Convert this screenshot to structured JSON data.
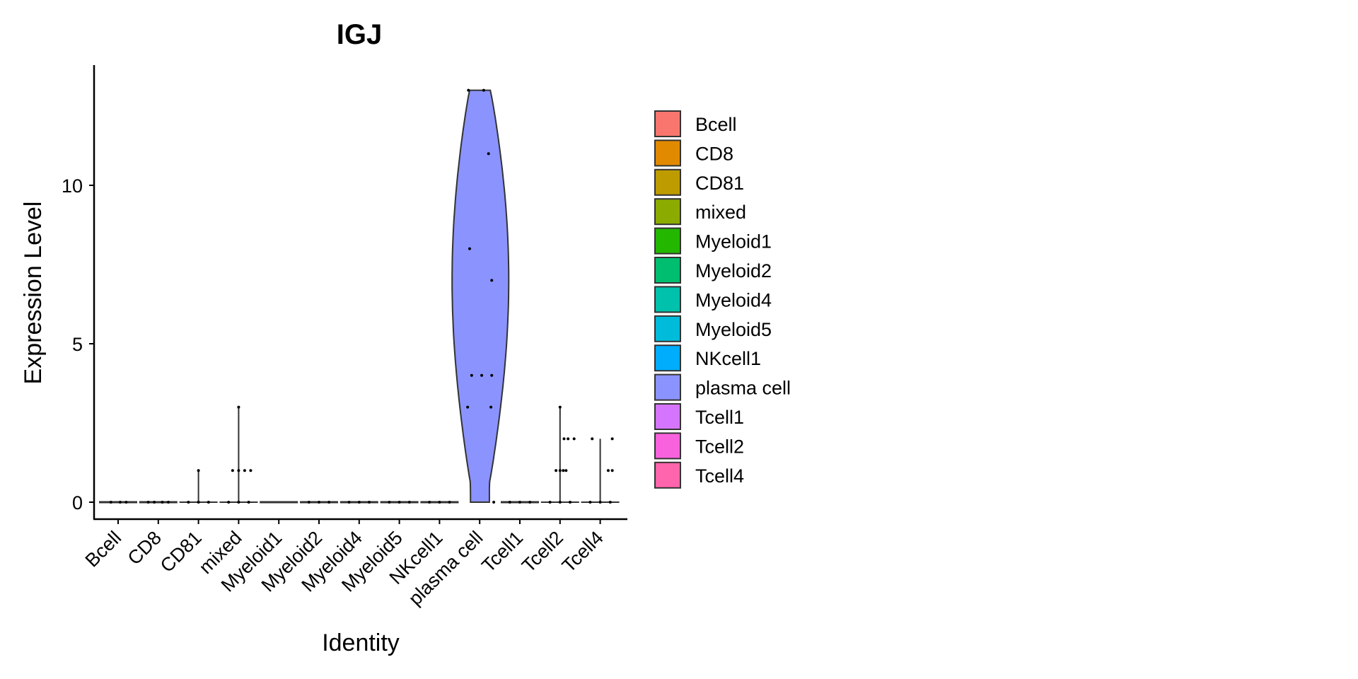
{
  "chart_data": {
    "type": "violin",
    "title": "IGJ",
    "xlabel": "Identity",
    "ylabel": "Expression Level",
    "ylim": [
      -0.6,
      13.6
    ],
    "yticks": [
      0,
      5,
      10
    ],
    "grid": false,
    "legend": {
      "placement": "right",
      "title": ""
    },
    "categories": [
      "Bcell",
      "CD8",
      "CD81",
      "mixed",
      "Myeloid1",
      "Myeloid2",
      "Myeloid4",
      "Myeloid5",
      "NKcell1",
      "plasma cell",
      "Tcell1",
      "Tcell2",
      "Tcell4"
    ],
    "colors": [
      "#F8766D",
      "#E18A00",
      "#BE9C00",
      "#8CAB00",
      "#24B700",
      "#00BE70",
      "#00C1AB",
      "#00BBDA",
      "#00ACFC",
      "#8B93FF",
      "#D575FE",
      "#F962DD",
      "#FF65AC"
    ],
    "series": [
      {
        "name": "Bcell",
        "max": 0,
        "points": [
          [
            -0.18,
            0
          ],
          [
            0.05,
            0
          ],
          [
            0.2,
            0
          ]
        ]
      },
      {
        "name": "CD8",
        "max": 0,
        "points": [
          [
            -0.25,
            0
          ],
          [
            -0.1,
            0
          ],
          [
            0.1,
            0
          ],
          [
            0.25,
            0
          ]
        ]
      },
      {
        "name": "CD81",
        "max": 1,
        "points": [
          [
            -0.25,
            0
          ],
          [
            0,
            0
          ],
          [
            0.25,
            0
          ],
          [
            0,
            1
          ]
        ]
      },
      {
        "name": "mixed",
        "max": 3,
        "points": [
          [
            -0.25,
            0
          ],
          [
            0,
            0
          ],
          [
            0.25,
            0
          ],
          [
            -0.15,
            1
          ],
          [
            0,
            1
          ],
          [
            0.15,
            1
          ],
          [
            0.3,
            1
          ],
          [
            0,
            3
          ]
        ]
      },
      {
        "name": "Myeloid1",
        "max": 0,
        "points": []
      },
      {
        "name": "Myeloid2",
        "max": 0,
        "points": [
          [
            -0.25,
            0
          ],
          [
            0,
            0
          ],
          [
            0.25,
            0
          ]
        ]
      },
      {
        "name": "Myeloid4",
        "max": 0,
        "points": [
          [
            -0.25,
            0
          ],
          [
            0,
            0
          ],
          [
            0.25,
            0
          ]
        ]
      },
      {
        "name": "Myeloid5",
        "max": 0,
        "points": [
          [
            -0.25,
            0
          ],
          [
            0,
            0
          ],
          [
            0.25,
            0
          ]
        ]
      },
      {
        "name": "NKcell1",
        "max": 0,
        "points": [
          [
            -0.25,
            0
          ],
          [
            0,
            0
          ],
          [
            0.25,
            0
          ]
        ]
      },
      {
        "name": "plasma cell",
        "max": 13,
        "points": [
          [
            -0.28,
            13
          ],
          [
            0.1,
            13
          ],
          [
            0.22,
            11
          ],
          [
            -0.25,
            8
          ],
          [
            0.3,
            7
          ],
          [
            -0.2,
            4
          ],
          [
            0.05,
            4
          ],
          [
            0.3,
            4
          ],
          [
            -0.3,
            3
          ],
          [
            0.28,
            3
          ],
          [
            0.35,
            0
          ]
        ]
      },
      {
        "name": "Tcell1",
        "max": 0,
        "points": [
          [
            -0.25,
            0
          ],
          [
            0,
            0
          ],
          [
            0.25,
            0
          ]
        ]
      },
      {
        "name": "Tcell2",
        "max": 3,
        "points": [
          [
            -0.25,
            0
          ],
          [
            0,
            0
          ],
          [
            0.25,
            0
          ],
          [
            -0.1,
            1
          ],
          [
            0,
            1
          ],
          [
            0.08,
            1
          ],
          [
            0.15,
            1
          ],
          [
            0.1,
            2
          ],
          [
            0.2,
            2
          ],
          [
            0.35,
            2
          ],
          [
            0,
            3
          ]
        ]
      },
      {
        "name": "Tcell4",
        "max": 2,
        "points": [
          [
            -0.25,
            0
          ],
          [
            0,
            0
          ],
          [
            0.25,
            0
          ],
          [
            0.2,
            1
          ],
          [
            0.3,
            1
          ],
          [
            -0.2,
            2
          ],
          [
            0.3,
            2
          ]
        ]
      }
    ]
  }
}
